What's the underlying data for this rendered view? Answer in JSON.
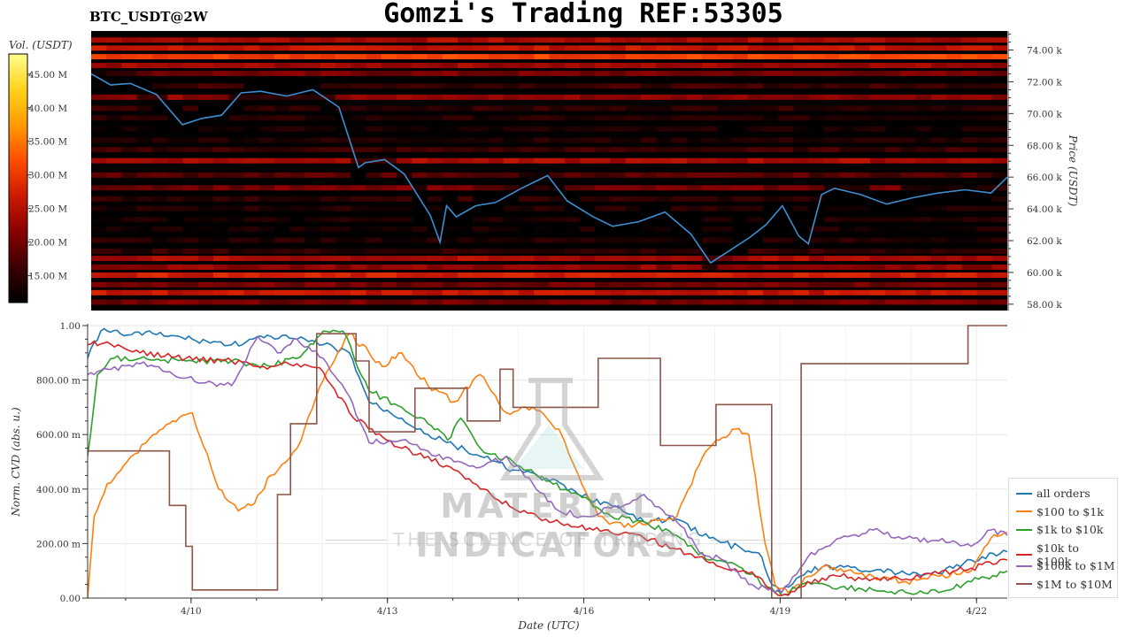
{
  "header": {
    "title": "Gomzi's Trading REF:53305",
    "symbol": "BTC_USDT@2W"
  },
  "watermark": {
    "main": "MATERIAL INDICATORS",
    "sub": "THE SCIENCE OF TRADING"
  },
  "colorbar": {
    "label": "Vol. (USDT)",
    "ticks": [
      "15.00 M",
      "20.00 M",
      "25.00 M",
      "30.00 M",
      "35.00 M",
      "40.00 M",
      "45.00 M"
    ],
    "tick_values": [
      15,
      20,
      25,
      30,
      35,
      40,
      45
    ],
    "range": [
      11,
      48
    ],
    "colors": [
      "#000000",
      "#3b0000",
      "#8a0000",
      "#cc1a00",
      "#ff4d00",
      "#ff9a00",
      "#ffd21a",
      "#ffff90"
    ]
  },
  "chart_data": [
    {
      "type": "heatmap",
      "title": "",
      "ylabel": "Price (USDT)",
      "ylim": [
        57600,
        75200
      ],
      "yticks": [
        58000,
        60000,
        62000,
        64000,
        66000,
        68000,
        70000,
        72000,
        74000
      ],
      "ytick_labels": [
        "58.00 k",
        "60.00 k",
        "62.00 k",
        "64.00 k",
        "66.00 k",
        "68.00 k",
        "70.00 k",
        "72.00 k",
        "74.00 k"
      ],
      "x_range": [
        "4/8 10:00",
        "4/22 15:00"
      ],
      "price_line_color": "#3b8ed0",
      "price_series": {
        "x_day": [
          0,
          0.3,
          0.6,
          1.0,
          1.4,
          1.7,
          2.0,
          2.3,
          2.6,
          3.0,
          3.4,
          3.8,
          4.1,
          4.2,
          4.35,
          4.5,
          4.8,
          5.2,
          5.35,
          5.45,
          5.6,
          5.9,
          6.2,
          6.6,
          7.0,
          7.3,
          7.7,
          8.0,
          8.4,
          8.8,
          9.2,
          9.5,
          9.8,
          10.1,
          10.35,
          10.6,
          10.85,
          11.0,
          11.2,
          11.4,
          11.8,
          12.2,
          12.6,
          13.0,
          13.4,
          13.8,
          14.05
        ],
        "y": [
          72500,
          71800,
          71900,
          71200,
          69300,
          69700,
          69900,
          71300,
          71400,
          71100,
          71500,
          70400,
          66600,
          66900,
          67000,
          67100,
          66200,
          63600,
          61900,
          64200,
          63500,
          64200,
          64400,
          65300,
          66100,
          64500,
          63500,
          62900,
          63200,
          63800,
          62400,
          60600,
          61400,
          62200,
          63000,
          64200,
          62300,
          61800,
          64900,
          65300,
          64900,
          64300,
          64700,
          65000,
          65200,
          65000,
          66000
        ]
      },
      "bands": [
        {
          "price": 74600,
          "level": 24
        },
        {
          "price": 74100,
          "level": 26
        },
        {
          "price": 73550,
          "level": 31
        },
        {
          "price": 73000,
          "level": 23
        },
        {
          "price": 72500,
          "level": 20
        },
        {
          "price": 71700,
          "level": 16
        },
        {
          "price": 71000,
          "level": 22
        },
        {
          "price": 70300,
          "level": 15
        },
        {
          "price": 69700,
          "level": 14
        },
        {
          "price": 69000,
          "level": 13
        },
        {
          "price": 68300,
          "level": 14
        },
        {
          "price": 67700,
          "level": 16
        },
        {
          "price": 67000,
          "level": 24
        },
        {
          "price": 66100,
          "level": 18
        },
        {
          "price": 65300,
          "level": 20
        },
        {
          "price": 64600,
          "level": 15
        },
        {
          "price": 64000,
          "level": 14
        },
        {
          "price": 63300,
          "level": 13
        },
        {
          "price": 62700,
          "level": 13
        },
        {
          "price": 62000,
          "level": 14
        },
        {
          "price": 61300,
          "level": 15
        },
        {
          "price": 60850,
          "level": 24
        },
        {
          "price": 60300,
          "level": 22
        },
        {
          "price": 59800,
          "level": 27
        },
        {
          "price": 59200,
          "level": 20
        },
        {
          "price": 58700,
          "level": 26
        },
        {
          "price": 58100,
          "level": 20
        }
      ]
    },
    {
      "type": "line",
      "title": "",
      "xlabel": "Date (UTC)",
      "ylabel": "Norm. CVD (abs. u.)",
      "ylim": [
        0,
        1
      ],
      "yticks": [
        0,
        0.2,
        0.4,
        0.6,
        0.8,
        1.0
      ],
      "ytick_labels": [
        "0.00",
        "200.00 m",
        "400.00 m",
        "600.00 m",
        "800.00 m",
        "1.00"
      ],
      "xticks": [
        1.58,
        4.58,
        7.58,
        10.58,
        13.58
      ],
      "xtick_labels": [
        "4/10",
        "4/13",
        "4/16",
        "4/19",
        "4/22"
      ],
      "x_range_days": [
        0,
        14.05
      ],
      "legend_position": "bottom-right",
      "series": [
        {
          "name": "all orders",
          "color": "#1f77b4",
          "x": [
            0,
            0.2,
            0.5,
            1.0,
            1.6,
            2.2,
            2.8,
            3.2,
            3.6,
            4.0,
            4.3,
            4.8,
            5.2,
            5.6,
            6.0,
            6.5,
            7.0,
            7.5,
            8.0,
            8.5,
            9.0,
            9.5,
            10.0,
            10.3,
            10.45,
            10.6,
            11.0,
            11.5,
            12.0,
            12.5,
            13.0,
            13.5,
            14.05
          ],
          "y": [
            0.88,
            0.98,
            0.97,
            0.97,
            0.95,
            0.93,
            0.96,
            0.95,
            0.93,
            0.9,
            0.72,
            0.66,
            0.6,
            0.56,
            0.52,
            0.47,
            0.44,
            0.38,
            0.34,
            0.28,
            0.29,
            0.22,
            0.18,
            0.15,
            0.05,
            0.02,
            0.1,
            0.12,
            0.1,
            0.09,
            0.09,
            0.14,
            0.17
          ]
        },
        {
          "name": "$100 to $1k",
          "color": "#ff7f0e",
          "x": [
            0,
            0.1,
            0.3,
            0.6,
            1.0,
            1.3,
            1.6,
            2.0,
            2.3,
            2.5,
            2.8,
            3.2,
            3.6,
            4.0,
            4.3,
            4.5,
            4.8,
            5.2,
            5.6,
            6.0,
            6.4,
            6.8,
            7.2,
            7.5,
            7.8,
            8.2,
            8.6,
            9.0,
            9.4,
            9.6,
            9.9,
            10.1,
            10.35,
            10.5,
            10.7,
            11.0,
            11.3,
            11.6,
            12.0,
            12.5,
            13.0,
            13.5,
            13.8,
            14.05
          ],
          "y": [
            0,
            0.3,
            0.42,
            0.5,
            0.6,
            0.65,
            0.68,
            0.4,
            0.32,
            0.34,
            0.45,
            0.55,
            0.8,
            0.97,
            0.9,
            0.85,
            0.9,
            0.78,
            0.72,
            0.82,
            0.68,
            0.7,
            0.62,
            0.45,
            0.3,
            0.26,
            0.28,
            0.3,
            0.52,
            0.58,
            0.62,
            0.6,
            0.2,
            0.05,
            0.02,
            0.08,
            0.12,
            0.1,
            0.08,
            0.06,
            0.08,
            0.1,
            0.22,
            0.24
          ]
        },
        {
          "name": "$1k to $10k",
          "color": "#2ca02c",
          "x": [
            0,
            0.15,
            0.4,
            0.8,
            1.5,
            2.2,
            2.8,
            3.3,
            3.6,
            3.9,
            4.3,
            4.8,
            5.2,
            5.5,
            5.7,
            6.0,
            6.5,
            7.0,
            7.5,
            8.0,
            8.5,
            9.0,
            9.5,
            10.0,
            10.4,
            10.6,
            11.0,
            11.5,
            12.0,
            12.5,
            13.0,
            13.5,
            14.05
          ],
          "y": [
            0.52,
            0.82,
            0.88,
            0.88,
            0.87,
            0.87,
            0.85,
            0.9,
            0.98,
            0.98,
            0.76,
            0.7,
            0.64,
            0.58,
            0.66,
            0.55,
            0.5,
            0.43,
            0.38,
            0.3,
            0.28,
            0.23,
            0.14,
            0.11,
            0.04,
            0.01,
            0.06,
            0.04,
            0.03,
            0.02,
            0.02,
            0.06,
            0.1
          ]
        },
        {
          "name": "$10k to $100k",
          "color": "#d62728",
          "x": [
            0,
            0.3,
            0.8,
            1.5,
            2.2,
            2.8,
            3.2,
            3.6,
            4.0,
            4.4,
            4.8,
            5.2,
            5.6,
            6.0,
            6.5,
            7.0,
            7.5,
            8.0,
            8.5,
            9.0,
            9.5,
            10.0,
            10.3,
            10.5,
            10.7,
            11.0,
            11.5,
            12.0,
            12.5,
            13.0,
            13.5,
            14.05
          ],
          "y": [
            0.93,
            0.94,
            0.9,
            0.88,
            0.87,
            0.85,
            0.86,
            0.83,
            0.68,
            0.6,
            0.55,
            0.52,
            0.47,
            0.4,
            0.33,
            0.29,
            0.26,
            0.24,
            0.22,
            0.18,
            0.13,
            0.1,
            0.07,
            0.02,
            0.01,
            0.06,
            0.08,
            0.07,
            0.07,
            0.09,
            0.11,
            0.14
          ]
        },
        {
          "name": "$100k to $1M",
          "color": "#9467bd",
          "x": [
            0,
            0.3,
            0.8,
            1.2,
            1.8,
            2.2,
            2.6,
            2.9,
            3.2,
            3.6,
            4.0,
            4.3,
            4.8,
            5.2,
            5.6,
            6.0,
            6.4,
            6.8,
            7.2,
            7.6,
            8.0,
            8.5,
            9.0,
            9.4,
            9.7,
            10.1,
            10.4,
            10.6,
            11.0,
            11.5,
            12.0,
            12.5,
            13.0,
            13.5,
            13.8,
            14.05
          ],
          "y": [
            0.82,
            0.84,
            0.86,
            0.83,
            0.79,
            0.78,
            0.96,
            0.9,
            0.95,
            0.88,
            0.74,
            0.57,
            0.58,
            0.54,
            0.5,
            0.48,
            0.52,
            0.42,
            0.32,
            0.3,
            0.33,
            0.38,
            0.28,
            0.16,
            0.14,
            0.05,
            0.03,
            0.02,
            0.15,
            0.22,
            0.25,
            0.22,
            0.21,
            0.19,
            0.25,
            0.23
          ]
        },
        {
          "name": "$1M to $10M",
          "color": "#8c564b",
          "step": true,
          "x": [
            0,
            0.9,
            1.25,
            1.5,
            1.6,
            2.5,
            2.9,
            3.1,
            3.5,
            4.0,
            4.1,
            4.3,
            4.7,
            5.0,
            5.55,
            5.8,
            6.3,
            6.5,
            6.8,
            7.0,
            7.3,
            7.8,
            8.5,
            8.75,
            9.25,
            9.6,
            10.0,
            10.45,
            10.9,
            11.4,
            12.5,
            13.0,
            13.45,
            13.8,
            14.05
          ],
          "y": [
            0.54,
            0.54,
            0.34,
            0.19,
            0.03,
            0.03,
            0.38,
            0.64,
            0.97,
            0.97,
            0.87,
            0.61,
            0.61,
            0.77,
            0.77,
            0.65,
            0.84,
            0.7,
            0.7,
            0.7,
            0.7,
            0.88,
            0.88,
            0.56,
            0.56,
            0.71,
            0.71,
            0.0,
            0.86,
            0.86,
            0.86,
            0.86,
            1.0,
            1.0,
            1.0
          ]
        }
      ]
    }
  ]
}
